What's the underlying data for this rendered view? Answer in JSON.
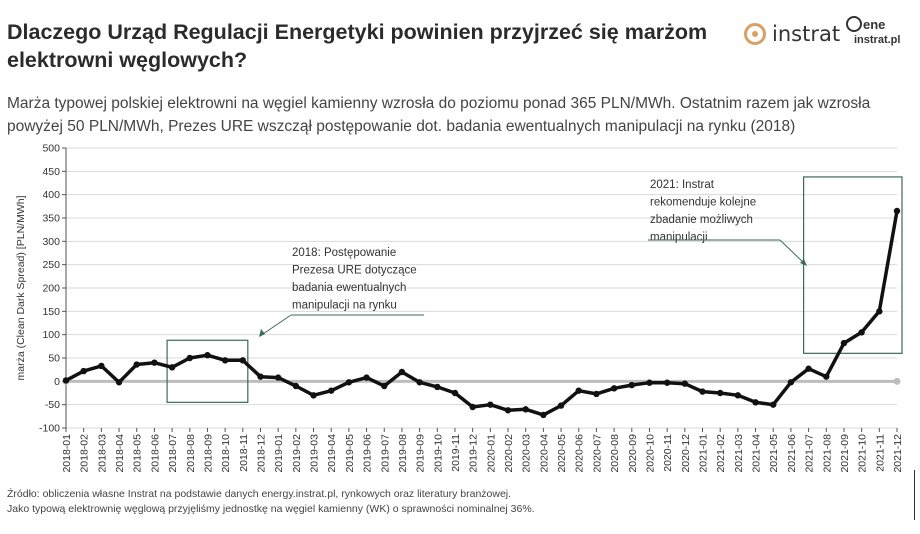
{
  "header": {
    "title": "Dlaczego Urząd Regulacji Energetyki powinien przyjrzeć się marżom elektrowni węglowych?",
    "subtitle": "Marża typowej polskiej elektrowni na węgiel kamienny wzrosła do poziomu ponad 365 PLN/MWh. Ostatnim razem jak wzrosła powyżej 50 PLN/MWh, Prezes URE wszczął postępowanie dot. badania ewentualnych manipulacji na rynku (2018)"
  },
  "logos": {
    "instrat": "instrat",
    "energy_line1": "ene",
    "energy_line2": "instrat.pl"
  },
  "footer": {
    "source": "Źródło: obliczenia własne Instrat na podstawie danych energy.instrat.pl, rynkowych oraz literatury branżowej.",
    "note": "Jako typową elektrownię węglową przyjęliśmy jednostkę na węgiel kamienny (WK) o sprawności nominalnej 36%."
  },
  "colors": {
    "line": "#111111",
    "zero_line": "#bdbdbd",
    "grid": "#d9d9d9",
    "box": "#3a6a5a"
  },
  "chart_data": {
    "type": "line",
    "title": "",
    "xlabel": "",
    "ylabel": "marża (Clean Dark Spread) [PLN/MWh]",
    "ylim": [
      -100,
      500
    ],
    "yticks": [
      -100,
      -50,
      0,
      50,
      100,
      150,
      200,
      250,
      300,
      350,
      400,
      450,
      500
    ],
    "ytick_labels": [
      "-100",
      "-50",
      "0",
      "50",
      "100",
      "150",
      "200",
      "250",
      "300",
      "350",
      "400",
      "450",
      "500"
    ],
    "grid": true,
    "categories": [
      "2018-01",
      "2018-02",
      "2018-03",
      "2018-04",
      "2018-05",
      "2018-06",
      "2018-07",
      "2018-08",
      "2018-09",
      "2018-10",
      "2018-11",
      "2018-12",
      "2019-01",
      "2019-02",
      "2019-03",
      "2019-04",
      "2019-05",
      "2019-06",
      "2019-07",
      "2019-08",
      "2019-09",
      "2019-10",
      "2019-11",
      "2019-12",
      "2020-01",
      "2020-02",
      "2020-03",
      "2020-04",
      "2020-05",
      "2020-06",
      "2020-07",
      "2020-08",
      "2020-09",
      "2020-10",
      "2020-11",
      "2020-12",
      "2021-01",
      "2021-02",
      "2021-03",
      "2021-04",
      "2021-05",
      "2021-06",
      "2021-07",
      "2021-08",
      "2021-09",
      "2021-10",
      "2021-11",
      "2021-12"
    ],
    "series": [
      {
        "values": [
          2,
          22,
          33,
          -2,
          36,
          40,
          30,
          50,
          56,
          45,
          45,
          10,
          8,
          -10,
          -30,
          -20,
          -2,
          8,
          -10,
          20,
          -2,
          -12,
          -25,
          -55,
          -50,
          -62,
          -60,
          -72,
          -52,
          -20,
          -27,
          -15,
          -8,
          -3,
          -3,
          -5,
          -22,
          -25,
          -30,
          -45,
          -50,
          -2,
          27,
          10,
          82,
          105,
          150,
          365
        ]
      }
    ],
    "annotations": [
      {
        "text": [
          "2018: Postępowanie",
          "Prezesa URE dotyczące",
          "badania ewentualnych",
          "manipulacji na rynku"
        ],
        "box_from": "2018-07",
        "box_to": "2018-11",
        "box_ylim": [
          -45,
          88
        ]
      },
      {
        "text": [
          "2021: Instrat",
          "rekomenduje kolejne",
          "zbadanie możliwych",
          "manipulacji"
        ],
        "box_from": "2021-07",
        "box_to": "2021-12",
        "box_ylim": [
          60,
          438
        ]
      }
    ]
  }
}
